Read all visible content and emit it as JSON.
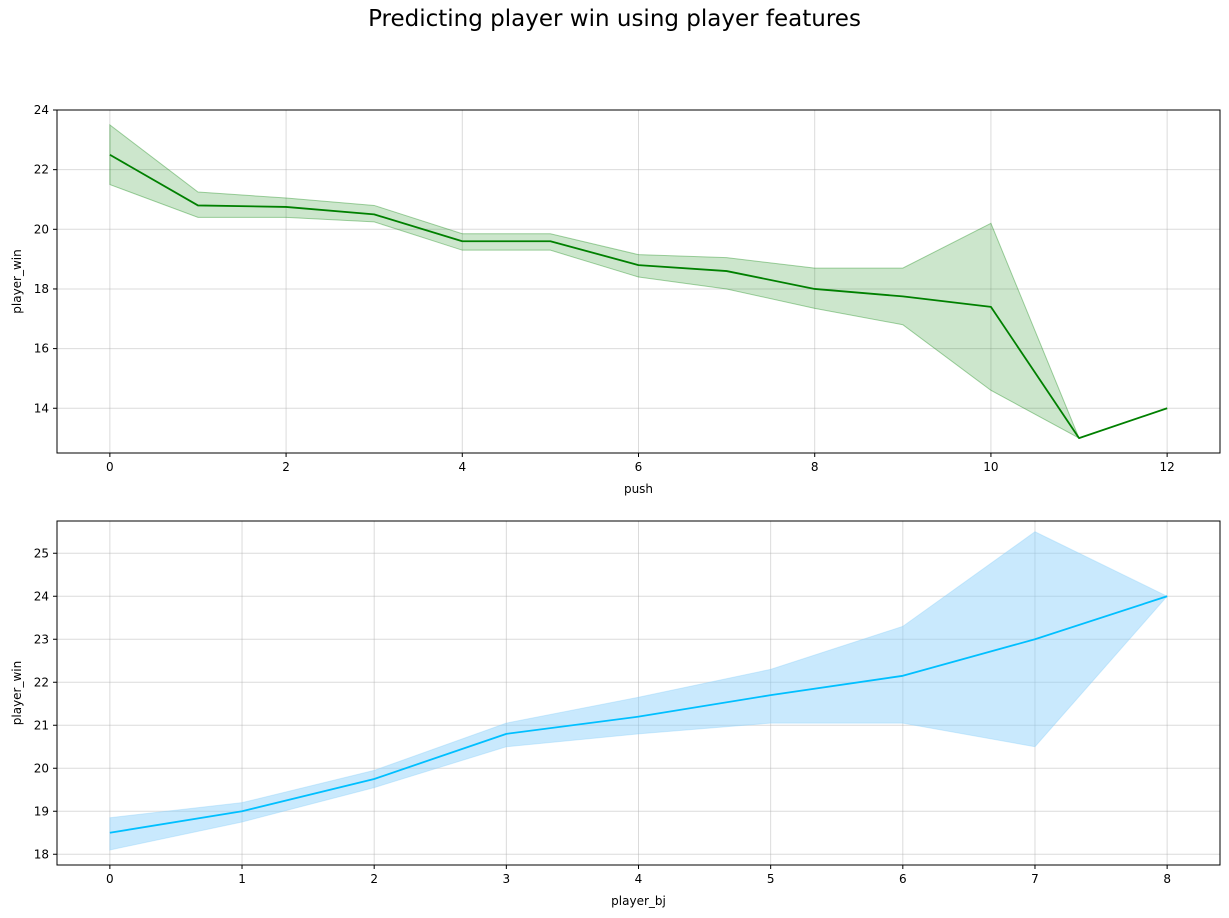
{
  "figure": {
    "title": "Predicting player win using player features"
  },
  "chart_data": [
    {
      "type": "line",
      "xlabel": "push",
      "ylabel": "player_win",
      "xlim": [
        -0.6,
        12.6
      ],
      "ylim": [
        12.5,
        24
      ],
      "xticks": [
        0,
        2,
        4,
        6,
        8,
        10,
        12
      ],
      "yticks": [
        14,
        16,
        18,
        20,
        22,
        24
      ],
      "grid": true,
      "color": "#008000",
      "band_color": "#008000",
      "series": [
        {
          "x": [
            0,
            1,
            2,
            3,
            4,
            5,
            6,
            7,
            8,
            9,
            10,
            11,
            12
          ],
          "values": [
            22.5,
            20.8,
            20.75,
            20.5,
            19.6,
            19.6,
            18.8,
            18.6,
            18.0,
            17.75,
            17.4,
            13.0,
            14.0
          ],
          "ci_lower": [
            21.5,
            20.4,
            20.4,
            20.25,
            19.3,
            19.3,
            18.4,
            18.0,
            17.35,
            16.8,
            14.6,
            13.0,
            14.0
          ],
          "ci_upper": [
            23.5,
            21.25,
            21.05,
            20.8,
            19.85,
            19.85,
            19.15,
            19.05,
            18.7,
            18.7,
            20.2,
            13.0,
            14.0
          ]
        }
      ]
    },
    {
      "type": "line",
      "xlabel": "player_bj",
      "ylabel": "player_win",
      "xlim": [
        -0.4,
        8.4
      ],
      "ylim": [
        17.75,
        25.75
      ],
      "xticks": [
        0,
        1,
        2,
        3,
        4,
        5,
        6,
        7,
        8
      ],
      "yticks": [
        18,
        19,
        20,
        21,
        22,
        23,
        24,
        25
      ],
      "grid": true,
      "color": "#00bfff",
      "band_color": "#87cefa",
      "series": [
        {
          "x": [
            0,
            1,
            2,
            3,
            4,
            5,
            6,
            7,
            8
          ],
          "values": [
            18.5,
            19.0,
            19.75,
            20.8,
            21.2,
            21.7,
            22.15,
            23.0,
            24.0
          ],
          "ci_lower": [
            18.1,
            18.75,
            19.55,
            20.5,
            20.8,
            21.05,
            21.05,
            20.5,
            24.0
          ],
          "ci_upper": [
            18.85,
            19.2,
            19.95,
            21.05,
            21.65,
            22.3,
            23.3,
            25.5,
            24.0
          ]
        }
      ]
    }
  ]
}
